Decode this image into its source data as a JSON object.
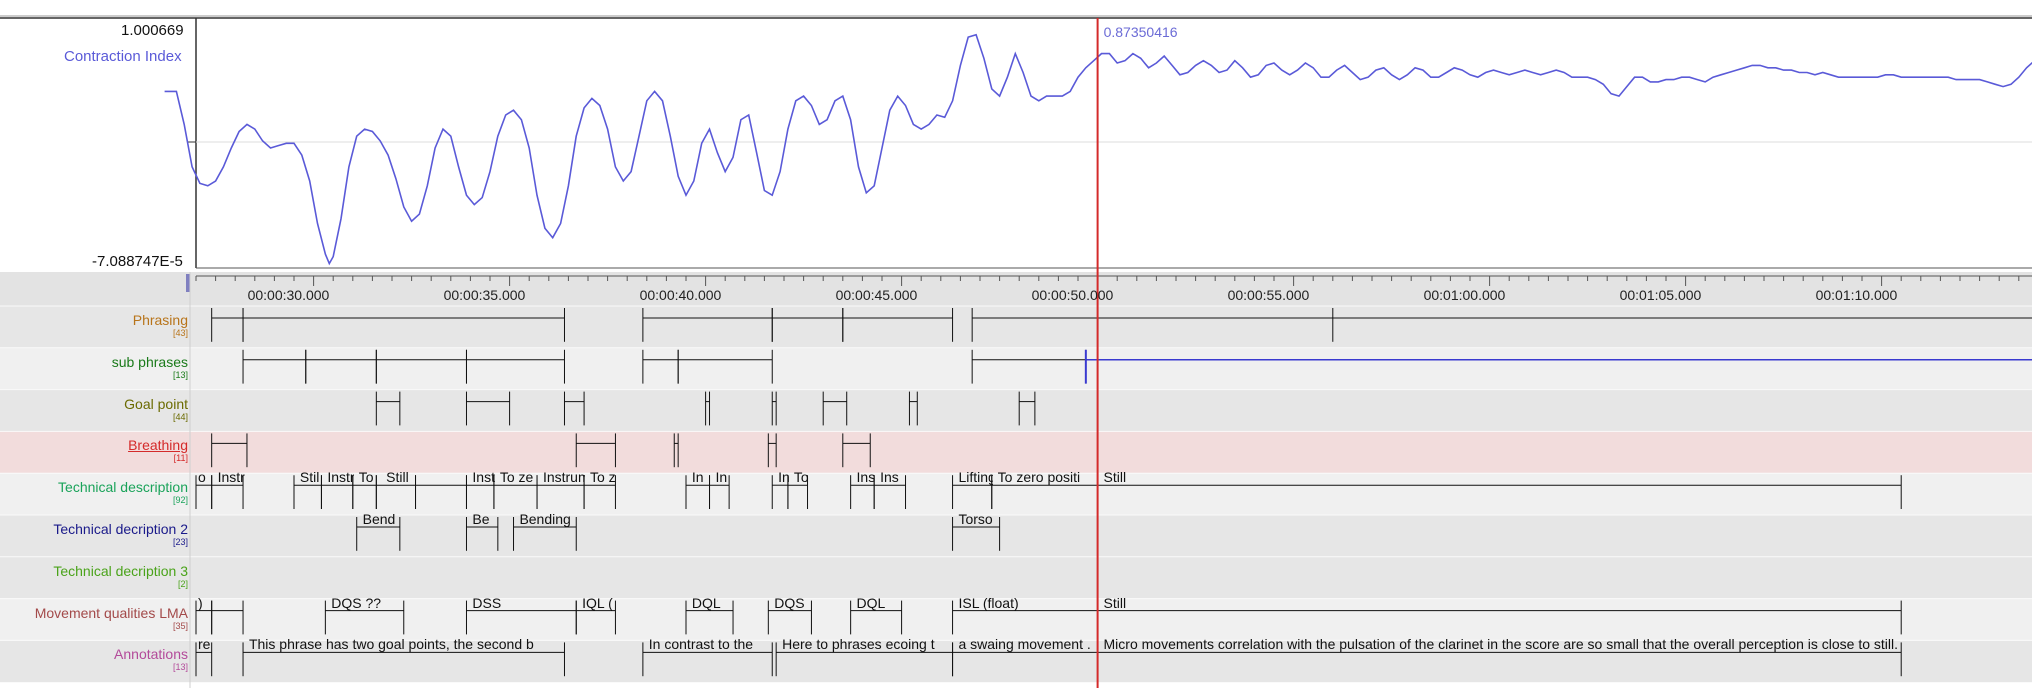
{
  "graph": {
    "y_max": "1.000669",
    "y_min": "-7.088747E-5",
    "series_name": "Contraction Index",
    "cursor_value": "0.87350416",
    "series_color": "#5a5ad8",
    "cursor_color": "#d42a2a"
  },
  "timeline": {
    "ticks": [
      {
        "time": "00:00:30.000",
        "t": 30
      },
      {
        "time": "00:00:35.000",
        "t": 35
      },
      {
        "time": "00:00:40.000",
        "t": 40
      },
      {
        "time": "00:00:45.000",
        "t": 45
      },
      {
        "time": "00:00:50.000",
        "t": 50
      },
      {
        "time": "00:00:55.000",
        "t": 55
      },
      {
        "time": "00:01:00.000",
        "t": 60
      },
      {
        "time": "00:01:05.000",
        "t": 65
      },
      {
        "time": "00:01:10.000",
        "t": 70
      }
    ],
    "cursor_t": 50.0
  },
  "tiers": [
    {
      "name": "Phrasing",
      "count": "[43]",
      "color": "#b8741a",
      "bg": "#e6e6e6",
      "underline": false,
      "segments": [
        [
          27.4,
          28.2
        ],
        [
          28.2,
          36.4
        ],
        [
          38.4,
          41.7
        ],
        [
          41.7,
          43.5
        ],
        [
          43.5,
          46.3
        ],
        [
          46.8,
          56.0
        ]
      ],
      "extend_to_end": true,
      "labels": []
    },
    {
      "name": "sub phrases",
      "count": "[13]",
      "color": "#1a7a1a",
      "bg": "#f0f0f0",
      "underline": false,
      "segments": [
        [
          28.2,
          29.8
        ],
        [
          29.8,
          31.6
        ],
        [
          31.6,
          33.9
        ],
        [
          33.9,
          36.4
        ],
        [
          38.4,
          39.3
        ],
        [
          39.3,
          41.7
        ],
        [
          46.8,
          49.7
        ]
      ],
      "blue_line_from": 49.7,
      "labels": []
    },
    {
      "name": "Goal point",
      "count": "[44]",
      "color": "#6b6b00",
      "bg": "#e6e6e6",
      "underline": false,
      "segments": [
        [
          31.6,
          32.2
        ],
        [
          33.9,
          35.0
        ],
        [
          36.4,
          36.9
        ],
        [
          40.0,
          40.1
        ],
        [
          41.7,
          41.8
        ],
        [
          43.0,
          43.6
        ],
        [
          45.2,
          45.4
        ],
        [
          48.0,
          48.4
        ]
      ],
      "labels": []
    },
    {
      "name": "Breathing",
      "count": "[11]",
      "color": "#d42a2a",
      "bg": "#f2dcdc",
      "underline": true,
      "segments": [
        [
          27.4,
          28.3
        ],
        [
          36.7,
          37.7
        ],
        [
          39.2,
          39.3
        ],
        [
          41.6,
          41.8
        ],
        [
          43.5,
          44.2
        ]
      ],
      "labels": []
    },
    {
      "name": "Technical description",
      "count": "[92]",
      "color": "#1aa35a",
      "bg": "#f0f0f0",
      "underline": false,
      "segments": [
        [
          27.0,
          27.4
        ],
        [
          27.4,
          28.2
        ],
        [
          29.5,
          30.2
        ],
        [
          30.2,
          31.0
        ],
        [
          31.0,
          31.6
        ],
        [
          31.6,
          32.6
        ],
        [
          32.6,
          33.9
        ],
        [
          33.9,
          34.6
        ],
        [
          34.6,
          35.7
        ],
        [
          35.7,
          36.9
        ],
        [
          36.9,
          37.7
        ],
        [
          39.5,
          40.1
        ],
        [
          40.1,
          40.6
        ],
        [
          41.7,
          42.1
        ],
        [
          42.1,
          42.6
        ],
        [
          43.7,
          44.3
        ],
        [
          44.3,
          45.1
        ],
        [
          46.3,
          47.3
        ],
        [
          47.3,
          50.0
        ],
        [
          50.0,
          70.5
        ]
      ],
      "labels": [
        {
          "t": 27.0,
          "text": "o"
        },
        {
          "t": 27.5,
          "text": "Instr"
        },
        {
          "t": 29.6,
          "text": "Stil"
        },
        {
          "t": 30.3,
          "text": "Instr"
        },
        {
          "t": 31.1,
          "text": "To"
        },
        {
          "t": 31.8,
          "text": "Still"
        },
        {
          "t": 34.0,
          "text": "Inst"
        },
        {
          "t": 34.7,
          "text": "To ze"
        },
        {
          "t": 35.8,
          "text": "Instrume"
        },
        {
          "t": 37.0,
          "text": "To z"
        },
        {
          "t": 39.6,
          "text": "In"
        },
        {
          "t": 40.2,
          "text": "In"
        },
        {
          "t": 41.8,
          "text": "In"
        },
        {
          "t": 42.2,
          "text": "To"
        },
        {
          "t": 43.8,
          "text": "Ins"
        },
        {
          "t": 44.4,
          "text": "Ins"
        },
        {
          "t": 46.4,
          "text": "Lifting"
        },
        {
          "t": 47.4,
          "text": "To zero positi"
        },
        {
          "t": 50.1,
          "text": "Still"
        }
      ]
    },
    {
      "name": "Technical decription 2",
      "count": "[23]",
      "color": "#1a1a8a",
      "bg": "#e6e6e6",
      "underline": false,
      "segments": [
        [
          31.1,
          32.2
        ],
        [
          33.9,
          34.7
        ],
        [
          35.1,
          36.7
        ],
        [
          46.3,
          47.5
        ]
      ],
      "labels": [
        {
          "t": 31.2,
          "text": "Bend"
        },
        {
          "t": 34.0,
          "text": "Be"
        },
        {
          "t": 35.2,
          "text": "Bending"
        },
        {
          "t": 46.4,
          "text": "Torso"
        }
      ]
    },
    {
      "name": "Technical decription 3",
      "count": "[2]",
      "color": "#4aa31a",
      "bg": "#e6e6e6",
      "underline": false,
      "segments": [],
      "labels": []
    },
    {
      "name": "Movement qualities LMA",
      "count": "[35]",
      "color": "#a34a4a",
      "bg": "#f0f0f0",
      "underline": false,
      "segments": [
        [
          27.0,
          27.4
        ],
        [
          27.4,
          28.2
        ],
        [
          30.3,
          32.3
        ],
        [
          33.9,
          36.7
        ],
        [
          36.7,
          37.7
        ],
        [
          39.5,
          40.7
        ],
        [
          41.6,
          42.7
        ],
        [
          43.7,
          45.0
        ],
        [
          46.3,
          50.0
        ],
        [
          50.0,
          70.5
        ]
      ],
      "labels": [
        {
          "t": 27.0,
          "text": ")"
        },
        {
          "t": 30.4,
          "text": "DQS ??"
        },
        {
          "t": 34.0,
          "text": "DSS"
        },
        {
          "t": 36.8,
          "text": "IQL ("
        },
        {
          "t": 39.6,
          "text": "DQL"
        },
        {
          "t": 41.7,
          "text": "DQS"
        },
        {
          "t": 43.8,
          "text": "DQL"
        },
        {
          "t": 46.4,
          "text": "ISL (float)"
        },
        {
          "t": 50.1,
          "text": "Still"
        }
      ]
    },
    {
      "name": "Annotations",
      "count": "[13]",
      "color": "#b34a9a",
      "bg": "#e6e6e6",
      "underline": false,
      "segments": [
        [
          27.0,
          27.4
        ],
        [
          28.2,
          36.4
        ],
        [
          38.4,
          41.7
        ],
        [
          41.8,
          46.3
        ],
        [
          46.3,
          50.0
        ],
        [
          50.0,
          70.5
        ]
      ],
      "labels": [
        {
          "t": 27.0,
          "text": "re"
        },
        {
          "t": 28.3,
          "text": "This phrase has two goal points, the second b"
        },
        {
          "t": 38.5,
          "text": "In contrast to the"
        },
        {
          "t": 41.9,
          "text": "Here to phrases ecoing t"
        },
        {
          "t": 46.4,
          "text": "a swaing movement ."
        },
        {
          "t": 50.1,
          "text": "Micro movements correlation with the pulsation of the clarinet in the score are so small that the overall perception is close to still."
        }
      ]
    }
  ],
  "curve": [
    [
      26.2,
      0.74
    ],
    [
      26.5,
      0.74
    ],
    [
      26.7,
      0.6
    ],
    [
      26.9,
      0.42
    ],
    [
      27.1,
      0.35
    ],
    [
      27.3,
      0.34
    ],
    [
      27.5,
      0.36
    ],
    [
      27.7,
      0.42
    ],
    [
      27.9,
      0.5
    ],
    [
      28.1,
      0.57
    ],
    [
      28.3,
      0.6
    ],
    [
      28.5,
      0.58
    ],
    [
      28.7,
      0.53
    ],
    [
      28.9,
      0.5
    ],
    [
      29.1,
      0.51
    ],
    [
      29.3,
      0.52
    ],
    [
      29.5,
      0.52
    ],
    [
      29.7,
      0.47
    ],
    [
      29.9,
      0.36
    ],
    [
      30.1,
      0.18
    ],
    [
      30.3,
      0.05
    ],
    [
      30.4,
      0.01
    ],
    [
      30.5,
      0.04
    ],
    [
      30.7,
      0.2
    ],
    [
      30.9,
      0.42
    ],
    [
      31.1,
      0.55
    ],
    [
      31.3,
      0.58
    ],
    [
      31.5,
      0.57
    ],
    [
      31.7,
      0.53
    ],
    [
      31.9,
      0.47
    ],
    [
      32.1,
      0.37
    ],
    [
      32.3,
      0.25
    ],
    [
      32.5,
      0.19
    ],
    [
      32.7,
      0.22
    ],
    [
      32.9,
      0.34
    ],
    [
      33.1,
      0.5
    ],
    [
      33.3,
      0.58
    ],
    [
      33.5,
      0.55
    ],
    [
      33.7,
      0.42
    ],
    [
      33.9,
      0.3
    ],
    [
      34.1,
      0.26
    ],
    [
      34.3,
      0.29
    ],
    [
      34.5,
      0.4
    ],
    [
      34.7,
      0.55
    ],
    [
      34.9,
      0.64
    ],
    [
      35.1,
      0.66
    ],
    [
      35.3,
      0.62
    ],
    [
      35.5,
      0.5
    ],
    [
      35.7,
      0.3
    ],
    [
      35.9,
      0.16
    ],
    [
      36.1,
      0.12
    ],
    [
      36.3,
      0.18
    ],
    [
      36.5,
      0.34
    ],
    [
      36.7,
      0.55
    ],
    [
      36.9,
      0.67
    ],
    [
      37.1,
      0.71
    ],
    [
      37.3,
      0.68
    ],
    [
      37.5,
      0.58
    ],
    [
      37.7,
      0.42
    ],
    [
      37.9,
      0.36
    ],
    [
      38.1,
      0.4
    ],
    [
      38.3,
      0.55
    ],
    [
      38.5,
      0.7
    ],
    [
      38.7,
      0.74
    ],
    [
      38.9,
      0.7
    ],
    [
      39.1,
      0.55
    ],
    [
      39.3,
      0.38
    ],
    [
      39.5,
      0.3
    ],
    [
      39.7,
      0.36
    ],
    [
      39.9,
      0.52
    ],
    [
      40.1,
      0.58
    ],
    [
      40.3,
      0.48
    ],
    [
      40.5,
      0.4
    ],
    [
      40.7,
      0.46
    ],
    [
      40.9,
      0.62
    ],
    [
      41.1,
      0.64
    ],
    [
      41.3,
      0.48
    ],
    [
      41.5,
      0.32
    ],
    [
      41.7,
      0.3
    ],
    [
      41.9,
      0.4
    ],
    [
      42.1,
      0.58
    ],
    [
      42.3,
      0.7
    ],
    [
      42.5,
      0.72
    ],
    [
      42.7,
      0.68
    ],
    [
      42.9,
      0.6
    ],
    [
      43.1,
      0.62
    ],
    [
      43.3,
      0.7
    ],
    [
      43.5,
      0.72
    ],
    [
      43.7,
      0.62
    ],
    [
      43.9,
      0.42
    ],
    [
      44.1,
      0.31
    ],
    [
      44.3,
      0.34
    ],
    [
      44.5,
      0.5
    ],
    [
      44.7,
      0.66
    ],
    [
      44.9,
      0.72
    ],
    [
      45.1,
      0.68
    ],
    [
      45.3,
      0.6
    ],
    [
      45.5,
      0.58
    ],
    [
      45.7,
      0.6
    ],
    [
      45.9,
      0.64
    ],
    [
      46.1,
      0.63
    ],
    [
      46.3,
      0.7
    ],
    [
      46.5,
      0.85
    ],
    [
      46.7,
      0.97
    ],
    [
      46.9,
      0.98
    ],
    [
      47.1,
      0.88
    ],
    [
      47.3,
      0.75
    ],
    [
      47.5,
      0.72
    ],
    [
      47.7,
      0.8
    ],
    [
      47.9,
      0.9
    ],
    [
      48.1,
      0.82
    ],
    [
      48.3,
      0.72
    ],
    [
      48.5,
      0.7
    ],
    [
      48.7,
      0.72
    ],
    [
      48.9,
      0.72
    ],
    [
      49.1,
      0.72
    ],
    [
      49.3,
      0.74
    ],
    [
      49.5,
      0.8
    ],
    [
      49.7,
      0.84
    ],
    [
      49.9,
      0.87
    ],
    [
      50.1,
      0.9
    ],
    [
      50.3,
      0.9
    ],
    [
      50.5,
      0.86
    ],
    [
      50.7,
      0.87
    ],
    [
      50.9,
      0.9
    ],
    [
      51.1,
      0.88
    ],
    [
      51.3,
      0.84
    ],
    [
      51.5,
      0.86
    ],
    [
      51.7,
      0.89
    ],
    [
      51.9,
      0.85
    ],
    [
      52.1,
      0.81
    ],
    [
      52.3,
      0.82
    ],
    [
      52.5,
      0.85
    ],
    [
      52.7,
      0.87
    ],
    [
      52.9,
      0.85
    ],
    [
      53.1,
      0.82
    ],
    [
      53.3,
      0.83
    ],
    [
      53.5,
      0.87
    ],
    [
      53.7,
      0.84
    ],
    [
      53.9,
      0.8
    ],
    [
      54.1,
      0.81
    ],
    [
      54.3,
      0.85
    ],
    [
      54.5,
      0.86
    ],
    [
      54.7,
      0.83
    ],
    [
      54.9,
      0.81
    ],
    [
      55.1,
      0.83
    ],
    [
      55.3,
      0.86
    ],
    [
      55.5,
      0.84
    ],
    [
      55.7,
      0.8
    ],
    [
      55.9,
      0.8
    ],
    [
      56.1,
      0.83
    ],
    [
      56.3,
      0.85
    ],
    [
      56.5,
      0.82
    ],
    [
      56.7,
      0.79
    ],
    [
      56.9,
      0.8
    ],
    [
      57.1,
      0.83
    ],
    [
      57.3,
      0.84
    ],
    [
      57.5,
      0.81
    ],
    [
      57.7,
      0.79
    ],
    [
      57.9,
      0.81
    ],
    [
      58.1,
      0.84
    ],
    [
      58.3,
      0.83
    ],
    [
      58.5,
      0.8
    ],
    [
      58.7,
      0.8
    ],
    [
      58.9,
      0.82
    ],
    [
      59.1,
      0.84
    ],
    [
      59.3,
      0.83
    ],
    [
      59.5,
      0.81
    ],
    [
      59.7,
      0.8
    ],
    [
      59.9,
      0.82
    ],
    [
      60.1,
      0.83
    ],
    [
      60.3,
      0.82
    ],
    [
      60.5,
      0.81
    ],
    [
      60.7,
      0.82
    ],
    [
      60.9,
      0.83
    ],
    [
      61.1,
      0.82
    ],
    [
      61.3,
      0.81
    ],
    [
      61.5,
      0.82
    ],
    [
      61.7,
      0.83
    ],
    [
      61.9,
      0.82
    ],
    [
      62.1,
      0.8
    ],
    [
      62.3,
      0.8
    ],
    [
      62.5,
      0.8
    ],
    [
      62.7,
      0.79
    ],
    [
      62.9,
      0.77
    ],
    [
      63.1,
      0.73
    ],
    [
      63.3,
      0.72
    ],
    [
      63.5,
      0.76
    ],
    [
      63.7,
      0.8
    ],
    [
      63.9,
      0.8
    ],
    [
      64.1,
      0.78
    ],
    [
      64.3,
      0.78
    ],
    [
      64.5,
      0.79
    ],
    [
      64.7,
      0.79
    ],
    [
      64.9,
      0.8
    ],
    [
      65.1,
      0.8
    ],
    [
      65.3,
      0.79
    ],
    [
      65.5,
      0.78
    ],
    [
      65.7,
      0.8
    ],
    [
      65.9,
      0.81
    ],
    [
      66.1,
      0.82
    ],
    [
      66.3,
      0.83
    ],
    [
      66.5,
      0.84
    ],
    [
      66.7,
      0.85
    ],
    [
      66.9,
      0.85
    ],
    [
      67.1,
      0.84
    ],
    [
      67.3,
      0.84
    ],
    [
      67.5,
      0.83
    ],
    [
      67.7,
      0.83
    ],
    [
      67.9,
      0.82
    ],
    [
      68.1,
      0.82
    ],
    [
      68.3,
      0.81
    ],
    [
      68.5,
      0.82
    ],
    [
      68.7,
      0.81
    ],
    [
      68.9,
      0.8
    ],
    [
      69.1,
      0.8
    ],
    [
      69.3,
      0.8
    ],
    [
      69.5,
      0.8
    ],
    [
      69.7,
      0.8
    ],
    [
      69.9,
      0.8
    ],
    [
      70.1,
      0.81
    ],
    [
      70.3,
      0.81
    ],
    [
      70.5,
      0.8
    ],
    [
      70.7,
      0.8
    ],
    [
      70.9,
      0.8
    ],
    [
      71.1,
      0.8
    ],
    [
      71.3,
      0.8
    ],
    [
      71.5,
      0.8
    ],
    [
      71.7,
      0.8
    ],
    [
      71.9,
      0.79
    ],
    [
      72.1,
      0.79
    ],
    [
      72.3,
      0.79
    ],
    [
      72.5,
      0.79
    ],
    [
      72.7,
      0.78
    ],
    [
      72.9,
      0.77
    ],
    [
      73.1,
      0.76
    ],
    [
      73.3,
      0.77
    ],
    [
      73.5,
      0.8
    ],
    [
      73.7,
      0.84
    ],
    [
      73.9,
      0.87
    ],
    [
      74.1,
      0.87
    ]
  ]
}
